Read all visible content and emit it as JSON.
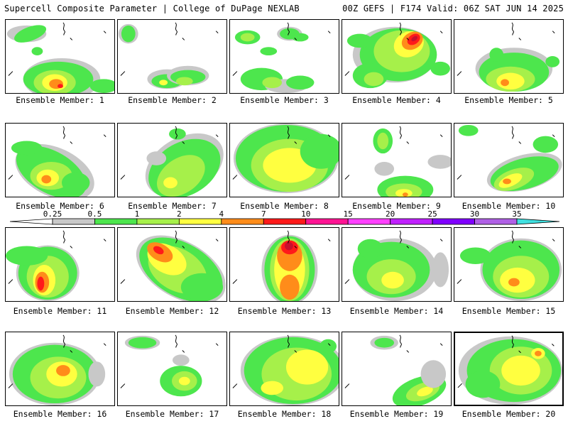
{
  "header": {
    "left": "Supercell Composite Parameter | College of DuPage NEXLAB",
    "right": "00Z GEFS | F174 Valid: 06Z SAT JUN 14 2025"
  },
  "label_prefix": "Ensemble Member: ",
  "selected_member": 20,
  "colorbar": {
    "labels": [
      "0.25",
      "0.5",
      "1",
      "2",
      "4",
      "7",
      "10",
      "15",
      "20",
      "25",
      "30",
      "35"
    ],
    "colors": [
      "#ffffff",
      "#c8c8c8",
      "#4de64d",
      "#a6f04a",
      "#ffff40",
      "#ff8c1a",
      "#ff1a1a",
      "#ff1493",
      "#ff40ff",
      "#c020ff",
      "#8000ff",
      "#b060e6",
      "#40e0e0"
    ]
  },
  "members": [
    {
      "id": 1,
      "label": "Ensemble Member: 1"
    },
    {
      "id": 2,
      "label": "Ensemble Member: 2"
    },
    {
      "id": 3,
      "label": "Ensemble Member: 3"
    },
    {
      "id": 4,
      "label": "Ensemble Member: 4"
    },
    {
      "id": 5,
      "label": "Ensemble Member: 5"
    },
    {
      "id": 6,
      "label": "Ensemble Member: 6"
    },
    {
      "id": 7,
      "label": "Ensemble Member: 7"
    },
    {
      "id": 8,
      "label": "Ensemble Member: 8"
    },
    {
      "id": 9,
      "label": "Ensemble Member: 9"
    },
    {
      "id": 10,
      "label": "Ensemble Member: 10"
    },
    {
      "id": 11,
      "label": "Ensemble Member: 11"
    },
    {
      "id": 12,
      "label": "Ensemble Member: 12"
    },
    {
      "id": 13,
      "label": "Ensemble Member: 13"
    },
    {
      "id": 14,
      "label": "Ensemble Member: 14"
    },
    {
      "id": 15,
      "label": "Ensemble Member: 15"
    },
    {
      "id": 16,
      "label": "Ensemble Member: 16"
    },
    {
      "id": 17,
      "label": "Ensemble Member: 17"
    },
    {
      "id": 18,
      "label": "Ensemble Member: 18"
    },
    {
      "id": 19,
      "label": "Ensemble Member: 19"
    },
    {
      "id": 20,
      "label": "Ensemble Member: 20"
    }
  ]
}
